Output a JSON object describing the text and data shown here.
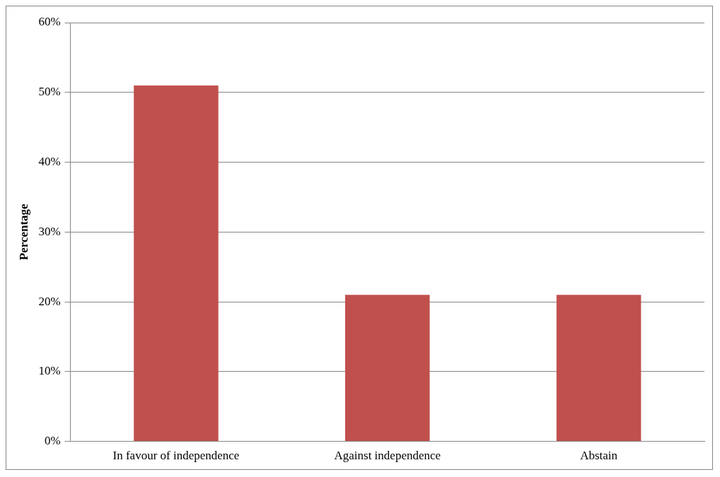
{
  "chart_data": {
    "type": "bar",
    "ylabel": "Percentage",
    "categories": [
      "In favour of independence",
      "Against independence",
      "Abstain"
    ],
    "values": [
      51,
      21,
      21
    ],
    "color": "#c0504d",
    "ylim": [
      0,
      60
    ],
    "yticks": [
      {
        "value": 0,
        "label": "0%"
      },
      {
        "value": 10,
        "label": "10%"
      },
      {
        "value": 20,
        "label": "20%"
      },
      {
        "value": 30,
        "label": "30%"
      },
      {
        "value": 40,
        "label": "40%"
      },
      {
        "value": 50,
        "label": "50%"
      },
      {
        "value": 60,
        "label": "60%"
      }
    ],
    "grid": "y",
    "legend": false
  }
}
